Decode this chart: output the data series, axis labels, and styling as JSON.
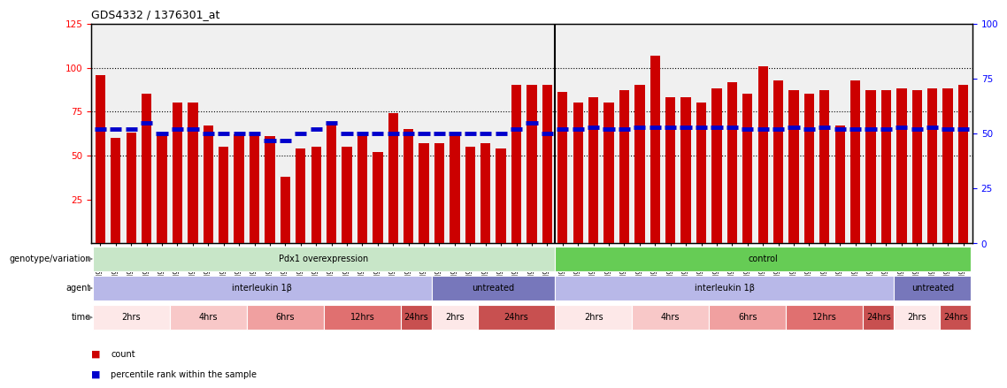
{
  "title": "GDS4332 / 1376301_at",
  "sample_labels": [
    "GSM998740",
    "GSM998753",
    "GSM998766",
    "GSM998771",
    "GSM998774",
    "GSM998729",
    "GSM998754",
    "GSM998767",
    "GSM998775",
    "GSM998741",
    "GSM998755",
    "GSM998768",
    "GSM998776",
    "GSM998730",
    "GSM998742",
    "GSM998747",
    "GSM998777",
    "GSM998731",
    "GSM998748",
    "GSM998756",
    "GSM998769",
    "GSM998732",
    "GSM998749",
    "GSM998757",
    "GSM998778",
    "GSM998733",
    "GSM998758",
    "GSM998770",
    "GSM998779",
    "GSM998734",
    "GSM998743",
    "GSM998759",
    "GSM998780",
    "GSM998735",
    "GSM998750",
    "GSM998760",
    "GSM998782",
    "GSM998744",
    "GSM998751",
    "GSM998761",
    "GSM998771",
    "GSM998736",
    "GSM998745",
    "GSM998762",
    "GSM998781",
    "GSM998737",
    "GSM998752",
    "GSM998763",
    "GSM998772",
    "GSM998738",
    "GSM998764",
    "GSM998773",
    "GSM998783",
    "GSM998739",
    "GSM998746",
    "GSM998765",
    "GSM998784"
  ],
  "bar_values": [
    96,
    60,
    63,
    85,
    62,
    80,
    80,
    67,
    55,
    62,
    63,
    61,
    38,
    54,
    55,
    68,
    55,
    62,
    52,
    74,
    65,
    57,
    57,
    63,
    55,
    57,
    54,
    90,
    90,
    90,
    86,
    80,
    83,
    80,
    87,
    90,
    107,
    83,
    83,
    80,
    88,
    92,
    85,
    101,
    93,
    87,
    85,
    87,
    67,
    93,
    87,
    87,
    88,
    87,
    88,
    88,
    90
  ],
  "percentile_values": [
    52,
    52,
    52,
    55,
    50,
    52,
    52,
    50,
    50,
    50,
    50,
    47,
    47,
    50,
    52,
    55,
    50,
    50,
    50,
    50,
    50,
    50,
    50,
    50,
    50,
    50,
    50,
    52,
    55,
    50,
    52,
    52,
    53,
    52,
    52,
    53,
    53,
    53,
    53,
    53,
    53,
    53,
    52,
    52,
    52,
    53,
    52,
    53,
    52,
    52,
    52,
    52,
    53,
    52,
    53,
    52,
    52
  ],
  "bar_color": "#cc0000",
  "percentile_color": "#0000cc",
  "ylim_left": [
    0,
    125
  ],
  "ylim_right": [
    0,
    100
  ],
  "yticks_left": [
    25,
    50,
    75,
    100,
    125
  ],
  "yticks_right": [
    0,
    25,
    50,
    75,
    100
  ],
  "hlines": [
    50,
    75,
    100
  ],
  "background_color": "#ffffff",
  "plot_bg_color": "#f0f0f0",
  "separator_idx": 29.5,
  "genotype_segments": [
    {
      "text": "Pdx1 overexpression",
      "color": "#c8e6c8",
      "start": 0,
      "end": 30
    },
    {
      "text": "control",
      "color": "#66cc55",
      "start": 30,
      "end": 57
    }
  ],
  "agent_segments": [
    {
      "text": "interleukin 1β",
      "color": "#b8b8e8",
      "start": 0,
      "end": 22
    },
    {
      "text": "untreated",
      "color": "#7777bb",
      "start": 22,
      "end": 30
    },
    {
      "text": "interleukin 1β",
      "color": "#b8b8e8",
      "start": 30,
      "end": 52
    },
    {
      "text": "untreated",
      "color": "#7777bb",
      "start": 52,
      "end": 57
    }
  ],
  "time_segments": [
    {
      "text": "2hrs",
      "color": "#fde8e8",
      "start": 0,
      "end": 5
    },
    {
      "text": "4hrs",
      "color": "#f8c8c8",
      "start": 5,
      "end": 10
    },
    {
      "text": "6hrs",
      "color": "#f0a0a0",
      "start": 10,
      "end": 15
    },
    {
      "text": "12hrs",
      "color": "#e07070",
      "start": 15,
      "end": 20
    },
    {
      "text": "24hrs",
      "color": "#c85050",
      "start": 20,
      "end": 22
    },
    {
      "text": "2hrs",
      "color": "#fde8e8",
      "start": 22,
      "end": 25
    },
    {
      "text": "24hrs",
      "color": "#c85050",
      "start": 25,
      "end": 30
    },
    {
      "text": "2hrs",
      "color": "#fde8e8",
      "start": 30,
      "end": 35
    },
    {
      "text": "4hrs",
      "color": "#f8c8c8",
      "start": 35,
      "end": 40
    },
    {
      "text": "6hrs",
      "color": "#f0a0a0",
      "start": 40,
      "end": 45
    },
    {
      "text": "12hrs",
      "color": "#e07070",
      "start": 45,
      "end": 50
    },
    {
      "text": "24hrs",
      "color": "#c85050",
      "start": 50,
      "end": 52
    },
    {
      "text": "2hrs",
      "color": "#fde8e8",
      "start": 52,
      "end": 55
    },
    {
      "text": "24hrs",
      "color": "#c85050",
      "start": 55,
      "end": 57
    }
  ],
  "genotype_label": "genotype/variation",
  "agent_label": "agent",
  "time_label": "time",
  "legend_count_color": "#cc0000",
  "legend_pct_color": "#0000cc"
}
